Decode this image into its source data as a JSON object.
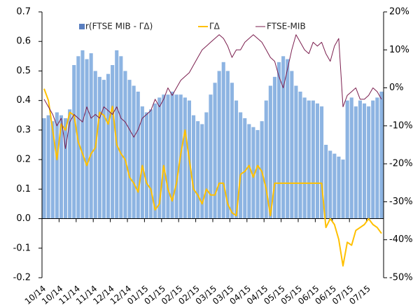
{
  "chart_data": {
    "type": "bar-line",
    "categories": [
      "10/14",
      null,
      null,
      null,
      "10/14",
      null,
      null,
      null,
      "11/14",
      null,
      null,
      null,
      "11/14",
      null,
      null,
      null,
      "12/14",
      null,
      null,
      null,
      "12/14",
      null,
      null,
      null,
      "01/15",
      null,
      null,
      null,
      "01/15",
      null,
      null,
      null,
      "02/15",
      null,
      null,
      null,
      "02/15",
      null,
      null,
      null,
      "03/15",
      null,
      null,
      null,
      "03/15",
      null,
      null,
      null,
      "04/15",
      null,
      null,
      null,
      "04/15",
      null,
      null,
      null,
      "05/15",
      null,
      null,
      null,
      "05/15",
      null,
      null,
      null,
      "06/15",
      null,
      null,
      null,
      "06/15",
      null,
      null,
      null,
      "07/15",
      null,
      null,
      null,
      "07/15",
      null,
      null,
      null
    ],
    "series": [
      {
        "name": "r(FTSE MIB - ΓΔ)",
        "kind": "bar",
        "color": "#8db4e2",
        "values": [
          0.34,
          0.35,
          0.33,
          0.36,
          0.35,
          0.34,
          0.37,
          0.52,
          0.55,
          0.57,
          0.54,
          0.56,
          0.5,
          0.48,
          0.47,
          0.49,
          0.52,
          0.57,
          0.55,
          0.5,
          0.47,
          0.45,
          0.43,
          0.38,
          0.36,
          0.37,
          0.39,
          0.41,
          0.42,
          0.42,
          0.43,
          0.42,
          0.42,
          0.41,
          0.4,
          0.35,
          0.33,
          0.32,
          0.36,
          0.42,
          0.46,
          0.5,
          0.53,
          0.5,
          0.46,
          0.4,
          0.36,
          0.34,
          0.32,
          0.31,
          0.3,
          0.33,
          0.4,
          0.45,
          0.48,
          0.53,
          0.55,
          0.54,
          0.5,
          0.45,
          0.43,
          0.41,
          0.4,
          0.4,
          0.39,
          0.38,
          0.25,
          0.23,
          0.22,
          0.21,
          0.2,
          0.4,
          0.41,
          0.38,
          0.4,
          0.39,
          0.38,
          0.4,
          0.41,
          0.43
        ]
      },
      {
        "name": "ΓΔ",
        "kind": "line",
        "color": "#ffc000",
        "values": [
          0.44,
          0.4,
          0.3,
          0.2,
          0.32,
          0.3,
          0.36,
          0.35,
          0.26,
          0.22,
          0.18,
          0.22,
          0.24,
          0.36,
          0.35,
          0.32,
          0.38,
          0.25,
          0.22,
          0.2,
          0.14,
          0.12,
          0.09,
          0.18,
          0.12,
          0.1,
          0.03,
          0.05,
          0.18,
          0.1,
          0.06,
          0.12,
          0.22,
          0.3,
          0.2,
          0.1,
          0.08,
          0.05,
          0.1,
          0.08,
          0.08,
          0.12,
          0.12,
          0.05,
          0.02,
          0.01,
          0.15,
          0.16,
          0.18,
          0.14,
          0.18,
          0.16,
          0.1,
          0.01,
          0.12,
          0.12,
          0.12,
          0.12,
          0.12,
          0.12,
          0.12,
          0.12,
          0.12,
          0.12,
          0.12,
          0.12,
          -0.03,
          0.0,
          -0.02,
          -0.07,
          -0.16,
          -0.08,
          -0.09,
          -0.04,
          -0.03,
          -0.02,
          0.0,
          -0.02,
          -0.03,
          -0.05
        ]
      },
      {
        "name": "FTSE-MIB",
        "kind": "line",
        "axis": "y2",
        "color": "#7b1e4e",
        "values": [
          -3,
          -5,
          -7,
          -10,
          -8,
          -16,
          -9,
          -7,
          -8,
          -9,
          -5,
          -8,
          -7,
          -8,
          -5,
          -6,
          -7,
          -5,
          -8,
          -9,
          -11,
          -13,
          -11,
          -8,
          -7,
          -6,
          -3,
          -5,
          -3,
          0,
          -2,
          0,
          2,
          3,
          4,
          6,
          8,
          10,
          11,
          12,
          13,
          14,
          13,
          11,
          8,
          10,
          10,
          12,
          13,
          14,
          13,
          12,
          10,
          8,
          7,
          3,
          0,
          5,
          10,
          14,
          12,
          10,
          9,
          12,
          11,
          12,
          9,
          7,
          11,
          13,
          -5,
          -2,
          -1,
          0,
          -3,
          -3,
          -2,
          0,
          -1,
          -3
        ]
      }
    ],
    "ylim": [
      -0.2,
      0.7
    ],
    "yticks": [
      -0.2,
      -0.1,
      {
        "value": 0,
        "label": "0.0"
      },
      0.1,
      0.2,
      0.3,
      0.4,
      0.5,
      0.6,
      0.7
    ],
    "y2lim": [
      -50,
      20
    ],
    "y2ticks": [
      {
        "value": -50,
        "label": "-50%"
      },
      {
        "value": -40,
        "label": "-40%"
      },
      {
        "value": -30,
        "label": "-30%"
      },
      {
        "value": -20,
        "label": "-20%"
      },
      {
        "value": -10,
        "label": "-10%"
      },
      {
        "value": 0,
        "label": "0%"
      },
      {
        "value": 10,
        "label": "10%"
      },
      {
        "value": 20,
        "label": "20%"
      }
    ]
  }
}
